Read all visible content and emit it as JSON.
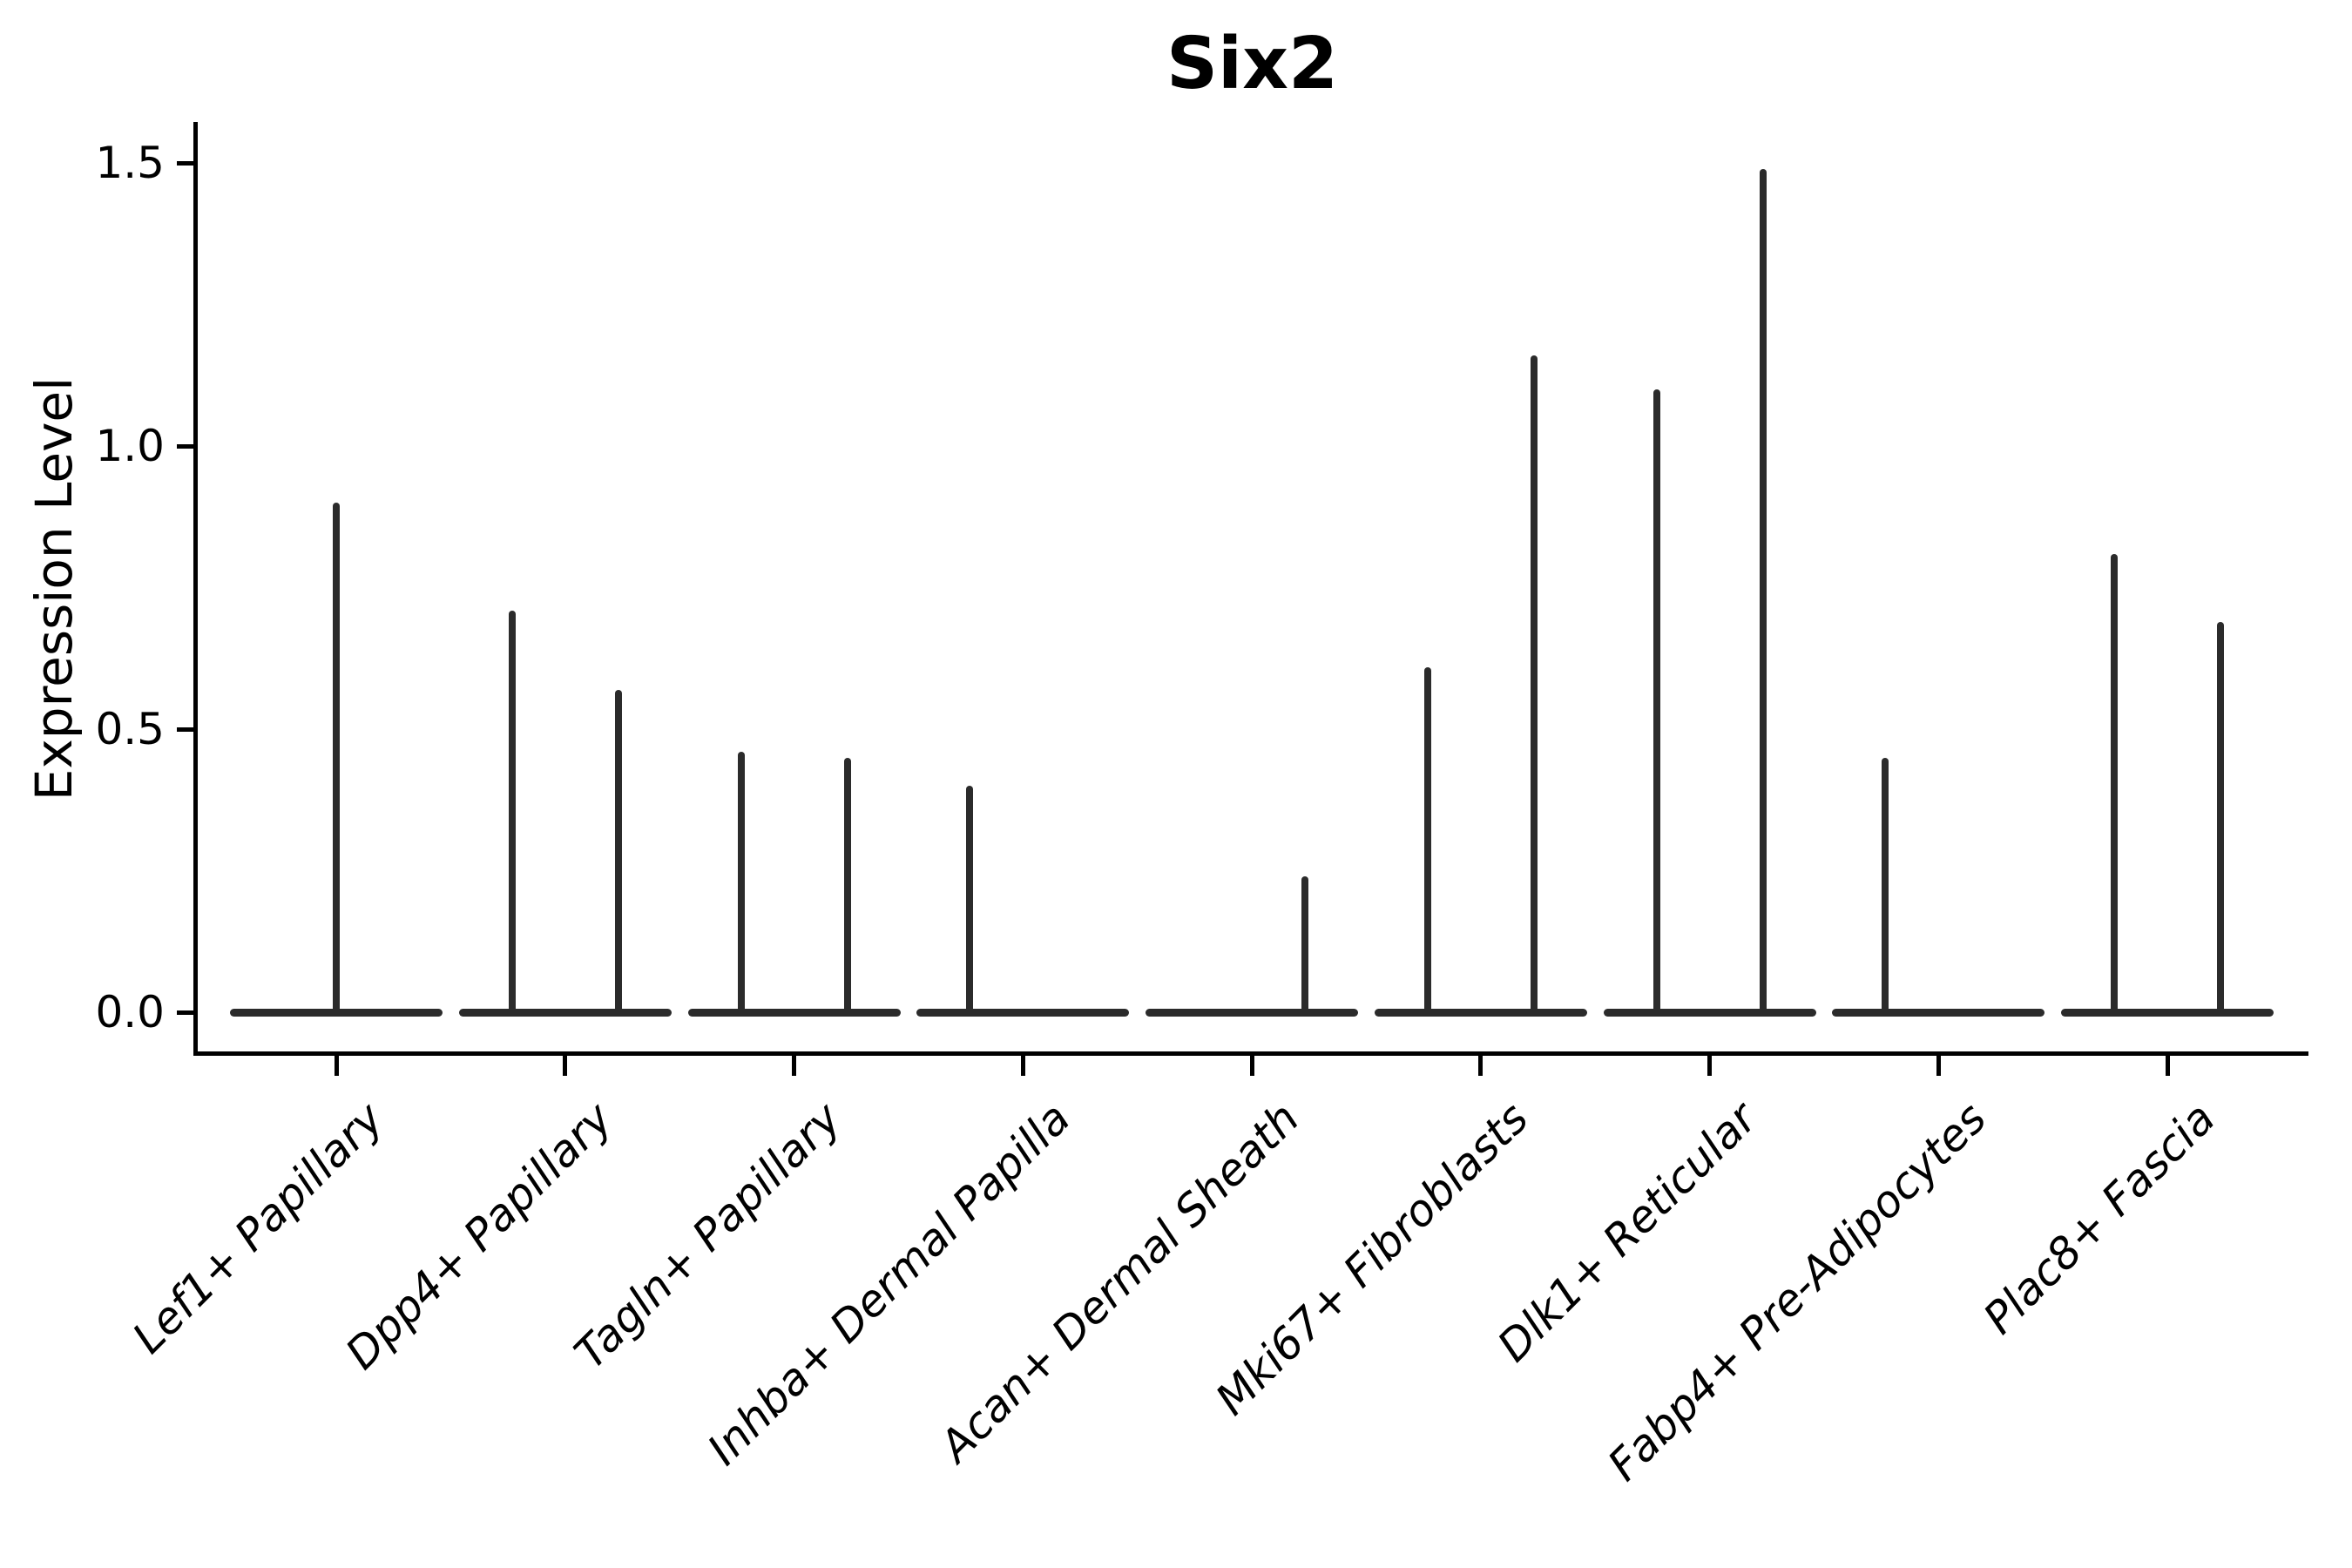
{
  "title": "Six2",
  "chart_data": {
    "type": "violin",
    "title": "Six2",
    "ylabel": "Expression Level",
    "xlabel": "",
    "yticks": [
      0.0,
      0.5,
      1.0,
      1.5
    ],
    "ytick_labels": [
      "0.0",
      "0.5",
      "1.0",
      "1.5"
    ],
    "ylim": [
      -0.07,
      1.57
    ],
    "grid": false,
    "legend": "none",
    "x_tick_rotation": 45,
    "x_tick_style": "italic",
    "violin_line_color": "#2b2b2b",
    "axis_color": "#000000",
    "background_color": "#ffffff",
    "description": "Split violin plot of Six2 expression; most mass collapsed at 0 with thin density spikes reaching the listed peak expression level per violin.",
    "categories": [
      {
        "label": "Lef1+ Papillary",
        "violins": [
          {
            "position": "full",
            "peak": 0.9
          }
        ]
      },
      {
        "label": "Dpp4+ Papillary",
        "violins": [
          {
            "position": "left",
            "peak": 0.71
          },
          {
            "position": "right",
            "peak": 0.57
          }
        ]
      },
      {
        "label": "Tagln+ Papillary",
        "violins": [
          {
            "position": "left",
            "peak": 0.46
          },
          {
            "position": "right",
            "peak": 0.45
          }
        ]
      },
      {
        "label": "Inhba+ Dermal Papilla",
        "violins": [
          {
            "position": "left",
            "peak": 0.4
          },
          {
            "position": "right",
            "peak": 0.0
          }
        ]
      },
      {
        "label": "Acan+ Dermal Sheath",
        "violins": [
          {
            "position": "left",
            "peak": 0.0
          },
          {
            "position": "right",
            "peak": 0.24
          }
        ]
      },
      {
        "label": "Mki67+ Fibroblasts",
        "violins": [
          {
            "position": "left",
            "peak": 0.61
          },
          {
            "position": "right",
            "peak": 1.16
          }
        ]
      },
      {
        "label": "Dlk1+ Reticular",
        "violins": [
          {
            "position": "left",
            "peak": 1.1
          },
          {
            "position": "right",
            "peak": 1.49
          }
        ]
      },
      {
        "label": "Fabp4+ Pre-Adipocytes",
        "violins": [
          {
            "position": "left",
            "peak": 0.45
          },
          {
            "position": "right",
            "peak": 0.0
          }
        ]
      },
      {
        "label": "Plac8+ Fascia",
        "violins": [
          {
            "position": "left",
            "peak": 0.81
          },
          {
            "position": "right",
            "peak": 0.69
          }
        ]
      }
    ]
  }
}
